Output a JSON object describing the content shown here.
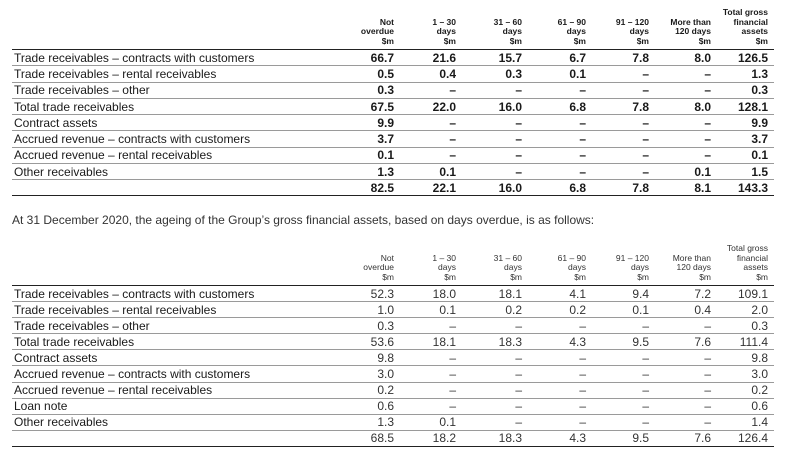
{
  "table_2021": {
    "headers": [
      [
        "Not",
        "overdue",
        "$m"
      ],
      [
        "1 – 30",
        "days",
        "$m"
      ],
      [
        "31 – 60",
        "days",
        "$m"
      ],
      [
        "61 – 90",
        "days",
        "$m"
      ],
      [
        "91 – 120",
        "days",
        "$m"
      ],
      [
        "More than",
        "120 days",
        "$m"
      ],
      [
        "Total gross",
        "financial",
        "assets",
        "$m"
      ]
    ],
    "rows": [
      {
        "label": "Trade receivables – contracts with customers",
        "values": [
          "66.7",
          "21.6",
          "15.7",
          "6.7",
          "7.8",
          "8.0",
          "126.5"
        ]
      },
      {
        "label": "Trade receivables – rental receivables",
        "values": [
          "0.5",
          "0.4",
          "0.3",
          "0.1",
          "–",
          "–",
          "1.3"
        ]
      },
      {
        "label": "Trade receivables – other",
        "values": [
          "0.3",
          "–",
          "–",
          "–",
          "–",
          "–",
          "0.3"
        ]
      },
      {
        "label": "Total trade receivables",
        "values": [
          "67.5",
          "22.0",
          "16.0",
          "6.8",
          "7.8",
          "8.0",
          "128.1"
        ]
      },
      {
        "label": "Contract assets",
        "values": [
          "9.9",
          "–",
          "–",
          "–",
          "–",
          "–",
          "9.9"
        ]
      },
      {
        "label": "Accrued revenue – contracts with customers",
        "values": [
          "3.7",
          "–",
          "–",
          "–",
          "–",
          "–",
          "3.7"
        ]
      },
      {
        "label": "Accrued revenue – rental receivables",
        "values": [
          "0.1",
          "–",
          "–",
          "–",
          "–",
          "–",
          "0.1"
        ]
      },
      {
        "label": "Other receivables",
        "values": [
          "1.3",
          "0.1",
          "–",
          "–",
          "–",
          "0.1",
          "1.5"
        ]
      }
    ],
    "total": {
      "label": "",
      "values": [
        "82.5",
        "22.1",
        "16.0",
        "6.8",
        "7.8",
        "8.1",
        "143.3"
      ]
    }
  },
  "intro_text": "At 31 December 2020, the ageing of the Group’s gross financial assets, based on days overdue, is as follows:",
  "table_2020": {
    "headers": [
      [
        "Not",
        "overdue",
        "$m"
      ],
      [
        "1 – 30",
        "days",
        "$m"
      ],
      [
        "31 – 60",
        "days",
        "$m"
      ],
      [
        "61 – 90",
        "days",
        "$m"
      ],
      [
        "91 – 120",
        "days",
        "$m"
      ],
      [
        "More than",
        "120 days",
        "$m"
      ],
      [
        "Total gross",
        "financial",
        "assets",
        "$m"
      ]
    ],
    "rows": [
      {
        "label": "Trade receivables – contracts with customers",
        "values": [
          "52.3",
          "18.0",
          "18.1",
          "4.1",
          "9.4",
          "7.2",
          "109.1"
        ]
      },
      {
        "label": "Trade receivables – rental receivables",
        "values": [
          "1.0",
          "0.1",
          "0.2",
          "0.2",
          "0.1",
          "0.4",
          "2.0"
        ]
      },
      {
        "label": "Trade receivables – other",
        "values": [
          "0.3",
          "–",
          "–",
          "–",
          "–",
          "–",
          "0.3"
        ]
      },
      {
        "label": "Total trade receivables",
        "values": [
          "53.6",
          "18.1",
          "18.3",
          "4.3",
          "9.5",
          "7.6",
          "111.4"
        ]
      },
      {
        "label": "Contract assets",
        "values": [
          "9.8",
          "–",
          "–",
          "–",
          "–",
          "–",
          "9.8"
        ]
      },
      {
        "label": "Accrued revenue – contracts with customers",
        "values": [
          "3.0",
          "–",
          "–",
          "–",
          "–",
          "–",
          "3.0"
        ]
      },
      {
        "label": "Accrued revenue – rental receivables",
        "values": [
          "0.2",
          "–",
          "–",
          "–",
          "–",
          "–",
          "0.2"
        ]
      },
      {
        "label": "Loan note",
        "values": [
          "0.6",
          "–",
          "–",
          "–",
          "–",
          "–",
          "0.6"
        ]
      },
      {
        "label": "Other receivables",
        "values": [
          "1.3",
          "0.1",
          "–",
          "–",
          "–",
          "–",
          "1.4"
        ]
      }
    ],
    "total": {
      "label": "",
      "values": [
        "68.5",
        "18.2",
        "18.3",
        "4.3",
        "9.5",
        "7.6",
        "126.4"
      ]
    }
  }
}
